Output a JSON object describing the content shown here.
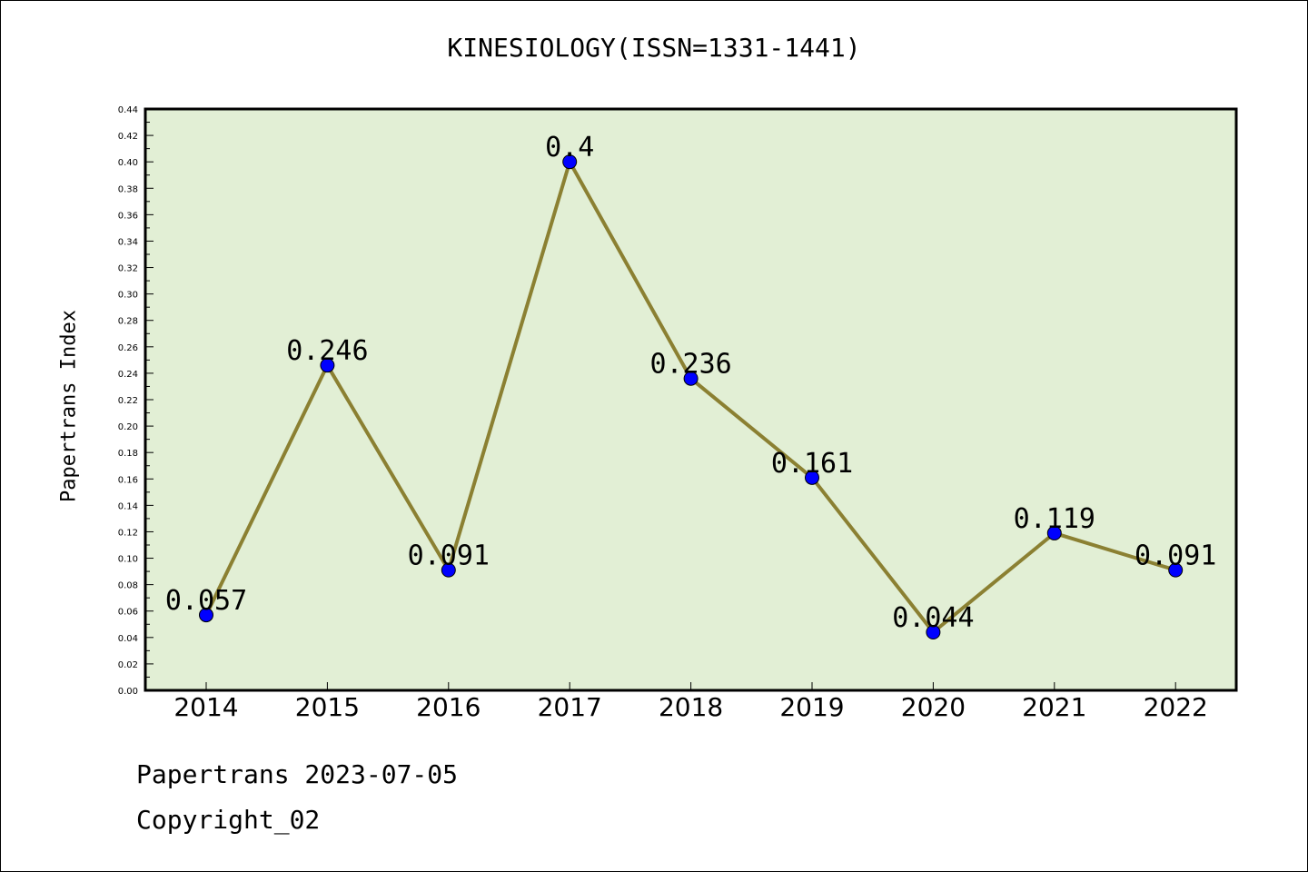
{
  "chart_data": {
    "type": "line",
    "title": "KINESIOLOGY(ISSN=1331-1441)",
    "xlabel": "",
    "ylabel": "Papertrans Index",
    "categories": [
      "2014",
      "2015",
      "2016",
      "2017",
      "2018",
      "2019",
      "2020",
      "2021",
      "2022"
    ],
    "values": [
      0.057,
      0.246,
      0.091,
      0.4,
      0.236,
      0.161,
      0.044,
      0.119,
      0.091
    ],
    "data_labels": [
      "0.057",
      "0.246",
      "0.091",
      "0.4",
      "0.236",
      "0.161",
      "0.044",
      "0.119",
      "0.091"
    ],
    "ylim": [
      0,
      0.44
    ],
    "yticks": [
      "0.00",
      "0.02",
      "0.04",
      "0.06",
      "0.08",
      "0.10",
      "0.12",
      "0.14",
      "0.16",
      "0.18",
      "0.20",
      "0.22",
      "0.24",
      "0.26",
      "0.28",
      "0.30",
      "0.32",
      "0.34",
      "0.36",
      "0.38",
      "0.40",
      "0.42",
      "0.44"
    ],
    "grid": false,
    "legend": "none",
    "colors": {
      "plot_background": "#e2efd5",
      "line": "#8b8032",
      "marker": "#0000ff",
      "axis": "#000000"
    }
  },
  "footer": {
    "line1": "Papertrans 2023-07-05",
    "line2": "Copyright_02"
  }
}
